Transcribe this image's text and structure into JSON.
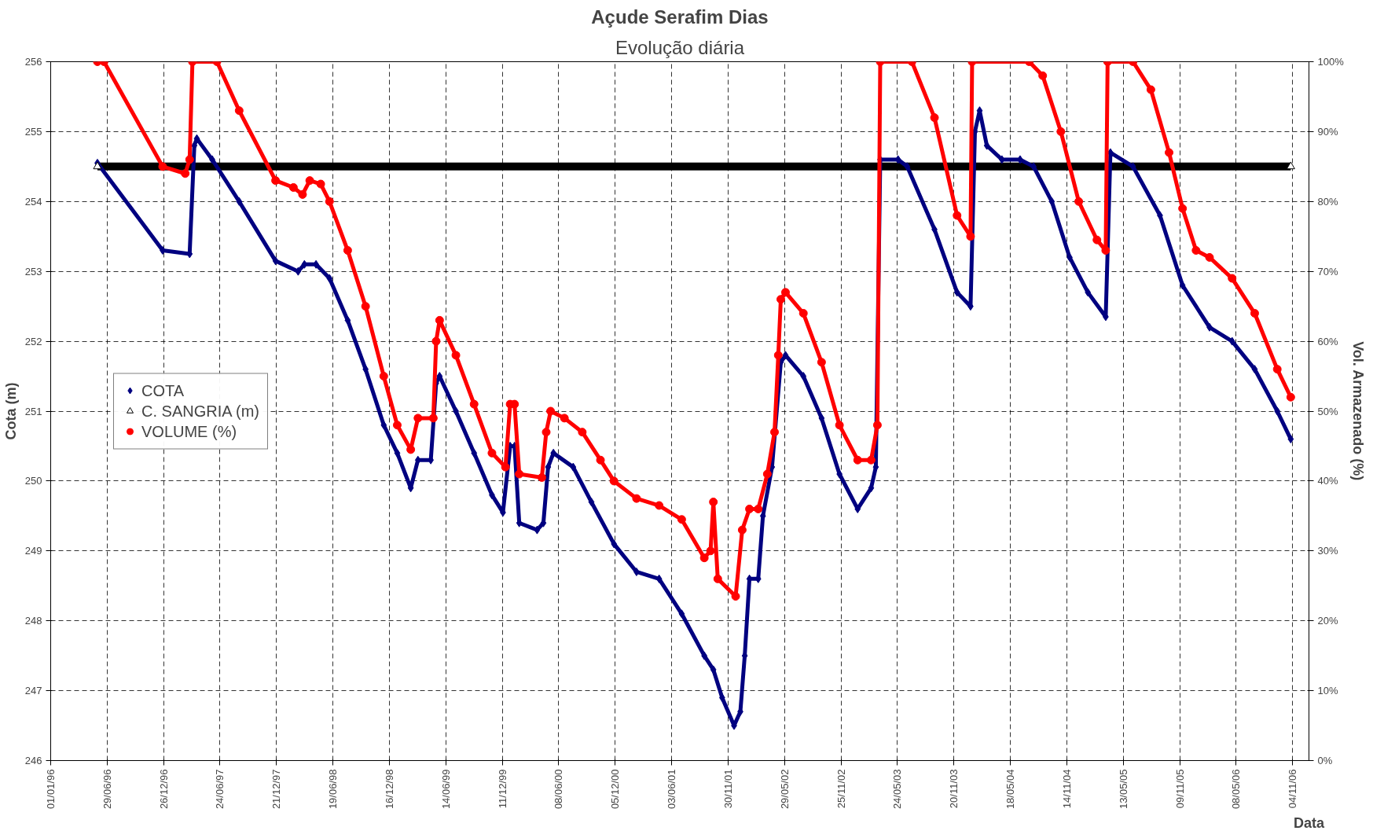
{
  "chart_data": {
    "type": "line",
    "title": "Açude Serafim Dias",
    "subtitle": "Evolução diária",
    "xlabel": "Data",
    "ylabel": "Cota (m)",
    "y2label": "Vol. Armazenado (%)",
    "xlim": [
      "1996-01-01",
      "2006-12-26"
    ],
    "xticks": [
      {
        "value": "1996-01-01",
        "label": "01/01/96"
      },
      {
        "value": "1996-06-29",
        "label": "29/06/96"
      },
      {
        "value": "1996-12-26",
        "label": "26/12/96"
      },
      {
        "value": "1997-06-24",
        "label": "24/06/97"
      },
      {
        "value": "1997-12-21",
        "label": "21/12/97"
      },
      {
        "value": "1998-06-19",
        "label": "19/06/98"
      },
      {
        "value": "1998-12-16",
        "label": "16/12/98"
      },
      {
        "value": "1999-06-14",
        "label": "14/06/99"
      },
      {
        "value": "1999-12-11",
        "label": "11/12/99"
      },
      {
        "value": "2000-06-08",
        "label": "08/06/00"
      },
      {
        "value": "2000-12-05",
        "label": "05/12/00"
      },
      {
        "value": "2001-06-03",
        "label": "03/06/01"
      },
      {
        "value": "2001-11-30",
        "label": "30/11/01"
      },
      {
        "value": "2002-05-29",
        "label": "29/05/02"
      },
      {
        "value": "2002-11-25",
        "label": "25/11/02"
      },
      {
        "value": "2003-05-24",
        "label": "24/05/03"
      },
      {
        "value": "2003-11-20",
        "label": "20/11/03"
      },
      {
        "value": "2004-05-18",
        "label": "18/05/04"
      },
      {
        "value": "2004-11-14",
        "label": "14/11/04"
      },
      {
        "value": "2005-05-13",
        "label": "13/05/05"
      },
      {
        "value": "2005-11-09",
        "label": "09/11/05"
      },
      {
        "value": "2006-05-08",
        "label": "08/05/06"
      },
      {
        "value": "2006-11-04",
        "label": "04/11/06"
      }
    ],
    "ylim": [
      246,
      256
    ],
    "yticks": [
      246,
      247,
      248,
      249,
      250,
      251,
      252,
      253,
      254,
      255,
      256
    ],
    "y2lim": [
      0,
      100
    ],
    "y2ticks": [
      {
        "value": 0,
        "label": "0%"
      },
      {
        "value": 10,
        "label": "10%"
      },
      {
        "value": 20,
        "label": "20%"
      },
      {
        "value": 30,
        "label": "30%"
      },
      {
        "value": 40,
        "label": "40%"
      },
      {
        "value": 50,
        "label": "50%"
      },
      {
        "value": 60,
        "label": "60%"
      },
      {
        "value": 70,
        "label": "70%"
      },
      {
        "value": 80,
        "label": "80%"
      },
      {
        "value": 90,
        "label": "90%"
      },
      {
        "value": 100,
        "label": "100%"
      }
    ],
    "grid": true,
    "legend": "left",
    "series": [
      {
        "name": "COTA",
        "color": "#000080",
        "marker": "diamond",
        "x": [
          "1996-05-29",
          "1996-12-23",
          "1997-03-19",
          "1997-04-03",
          "1997-04-11",
          "1997-05-30",
          "1997-08-24",
          "1997-12-18",
          "1998-02-28",
          "1998-03-20",
          "1998-04-26",
          "1998-06-08",
          "1998-08-05",
          "1998-10-01",
          "1998-11-28",
          "1999-01-10",
          "1999-02-22",
          "1999-03-17",
          "1999-04-27",
          "1999-05-14",
          "1999-05-25",
          "1999-07-16",
          "1999-09-12",
          "1999-11-08",
          "1999-12-13",
          "2000-01-05",
          "2000-01-19",
          "2000-02-03",
          "2000-03-31",
          "2000-04-20",
          "2000-05-05",
          "2000-05-22",
          "2000-07-24",
          "2000-09-20",
          "2000-12-01",
          "2001-02-11",
          "2001-04-24",
          "2001-07-05",
          "2001-09-15",
          "2001-10-14",
          "2001-11-11",
          "2001-12-19",
          "2002-01-08",
          "2002-01-22",
          "2002-02-06",
          "2002-03-06",
          "2002-03-21",
          "2002-04-19",
          "2002-05-17",
          "2002-06-01",
          "2002-07-28",
          "2002-09-24",
          "2002-11-20",
          "2003-01-17",
          "2003-03-01",
          "2003-03-16",
          "2003-03-30",
          "2003-05-26",
          "2003-06-24",
          "2003-09-19",
          "2003-11-30",
          "2004-01-12",
          "2004-01-26",
          "2004-02-10",
          "2004-03-04",
          "2004-04-21",
          "2004-06-18",
          "2004-07-31",
          "2004-09-27",
          "2004-11-23",
          "2005-01-20",
          "2005-03-18",
          "2005-04-02",
          "2005-06-13",
          "2005-09-07",
          "2005-11-18",
          "2006-02-12",
          "2006-04-25",
          "2006-07-06",
          "2006-09-16",
          "2006-10-29"
        ],
        "values": [
          254.55,
          253.3,
          253.25,
          254.8,
          254.9,
          254.6,
          254.0,
          253.15,
          253.0,
          253.1,
          253.1,
          252.9,
          252.3,
          251.6,
          250.8,
          250.4,
          249.9,
          250.3,
          250.3,
          251.4,
          251.5,
          251.0,
          250.4,
          249.8,
          249.55,
          250.5,
          250.5,
          249.4,
          249.3,
          249.4,
          250.2,
          250.4,
          250.2,
          249.7,
          249.1,
          248.7,
          248.6,
          248.1,
          247.5,
          247.3,
          246.9,
          246.5,
          246.7,
          247.5,
          248.6,
          248.6,
          249.5,
          250.2,
          251.7,
          251.8,
          251.5,
          250.9,
          250.1,
          249.6,
          249.9,
          250.2,
          254.6,
          254.6,
          254.5,
          253.6,
          252.7,
          252.5,
          255.0,
          255.3,
          254.8,
          254.6,
          254.6,
          254.5,
          254.0,
          253.2,
          252.7,
          252.35,
          254.7,
          254.5,
          253.8,
          252.8,
          252.2,
          252.0,
          251.6,
          251.0,
          250.6
        ]
      },
      {
        "name": "C. SANGRIA (m)",
        "color": "#000000",
        "marker": "triangle",
        "x": [
          "1996-05-29",
          "2006-10-29"
        ],
        "values": [
          254.5,
          254.5
        ]
      },
      {
        "name": "VOLUME (%)",
        "color": "#ff0000",
        "marker": "circle",
        "axis": "y2",
        "x": [
          "1996-05-29",
          "1996-06-19",
          "1996-12-23",
          "1997-03-05",
          "1997-03-19",
          "1997-03-28",
          "1997-06-14",
          "1997-08-24",
          "1997-12-18",
          "1998-02-13",
          "1998-03-14",
          "1998-04-06",
          "1998-05-11",
          "1998-06-08",
          "1998-08-05",
          "1998-10-01",
          "1998-11-28",
          "1999-01-10",
          "1999-02-22",
          "1999-03-17",
          "1999-05-05",
          "1999-05-14",
          "1999-05-25",
          "1999-07-16",
          "1999-09-12",
          "1999-11-08",
          "1999-12-21",
          "2000-01-05",
          "2000-01-19",
          "2000-02-03",
          "2000-04-15",
          "2000-04-29",
          "2000-05-13",
          "2000-06-26",
          "2000-08-22",
          "2000-10-19",
          "2000-12-01",
          "2001-02-11",
          "2001-04-24",
          "2001-07-05",
          "2001-09-15",
          "2001-10-05",
          "2001-10-14",
          "2001-10-28",
          "2001-12-24",
          "2002-01-14",
          "2002-02-06",
          "2002-03-06",
          "2002-04-04",
          "2002-04-27",
          "2002-05-09",
          "2002-05-17",
          "2002-06-01",
          "2002-07-28",
          "2002-09-24",
          "2002-11-20",
          "2003-01-17",
          "2003-03-01",
          "2003-03-21",
          "2003-03-30",
          "2003-07-09",
          "2003-09-19",
          "2003-11-30",
          "2004-01-12",
          "2004-01-17",
          "2004-07-17",
          "2004-08-29",
          "2004-10-26",
          "2004-12-22",
          "2005-02-18",
          "2005-03-18",
          "2005-03-24",
          "2005-06-13",
          "2005-08-09",
          "2005-10-06",
          "2005-11-18",
          "2005-12-31",
          "2006-02-12",
          "2006-04-25",
          "2006-07-06",
          "2006-09-16",
          "2006-10-29"
        ],
        "values": [
          100,
          100,
          85,
          84,
          86,
          100,
          100,
          93,
          83,
          82,
          81,
          83,
          82.5,
          80,
          73,
          65,
          55,
          48,
          44.5,
          49,
          49,
          60,
          63,
          58,
          51,
          44,
          42,
          51,
          51,
          41,
          40.5,
          47,
          50,
          49,
          47,
          43,
          40,
          37.5,
          36.5,
          34.5,
          29,
          30,
          37,
          26,
          23.5,
          33,
          36,
          36,
          41,
          47,
          58,
          66,
          67,
          64,
          57,
          48,
          43,
          43,
          48,
          100,
          100,
          92,
          78,
          75,
          100,
          100,
          98,
          90,
          80,
          74.5,
          73,
          100,
          100,
          96,
          87,
          79,
          73,
          72,
          69,
          64,
          56,
          52
        ]
      }
    ]
  }
}
